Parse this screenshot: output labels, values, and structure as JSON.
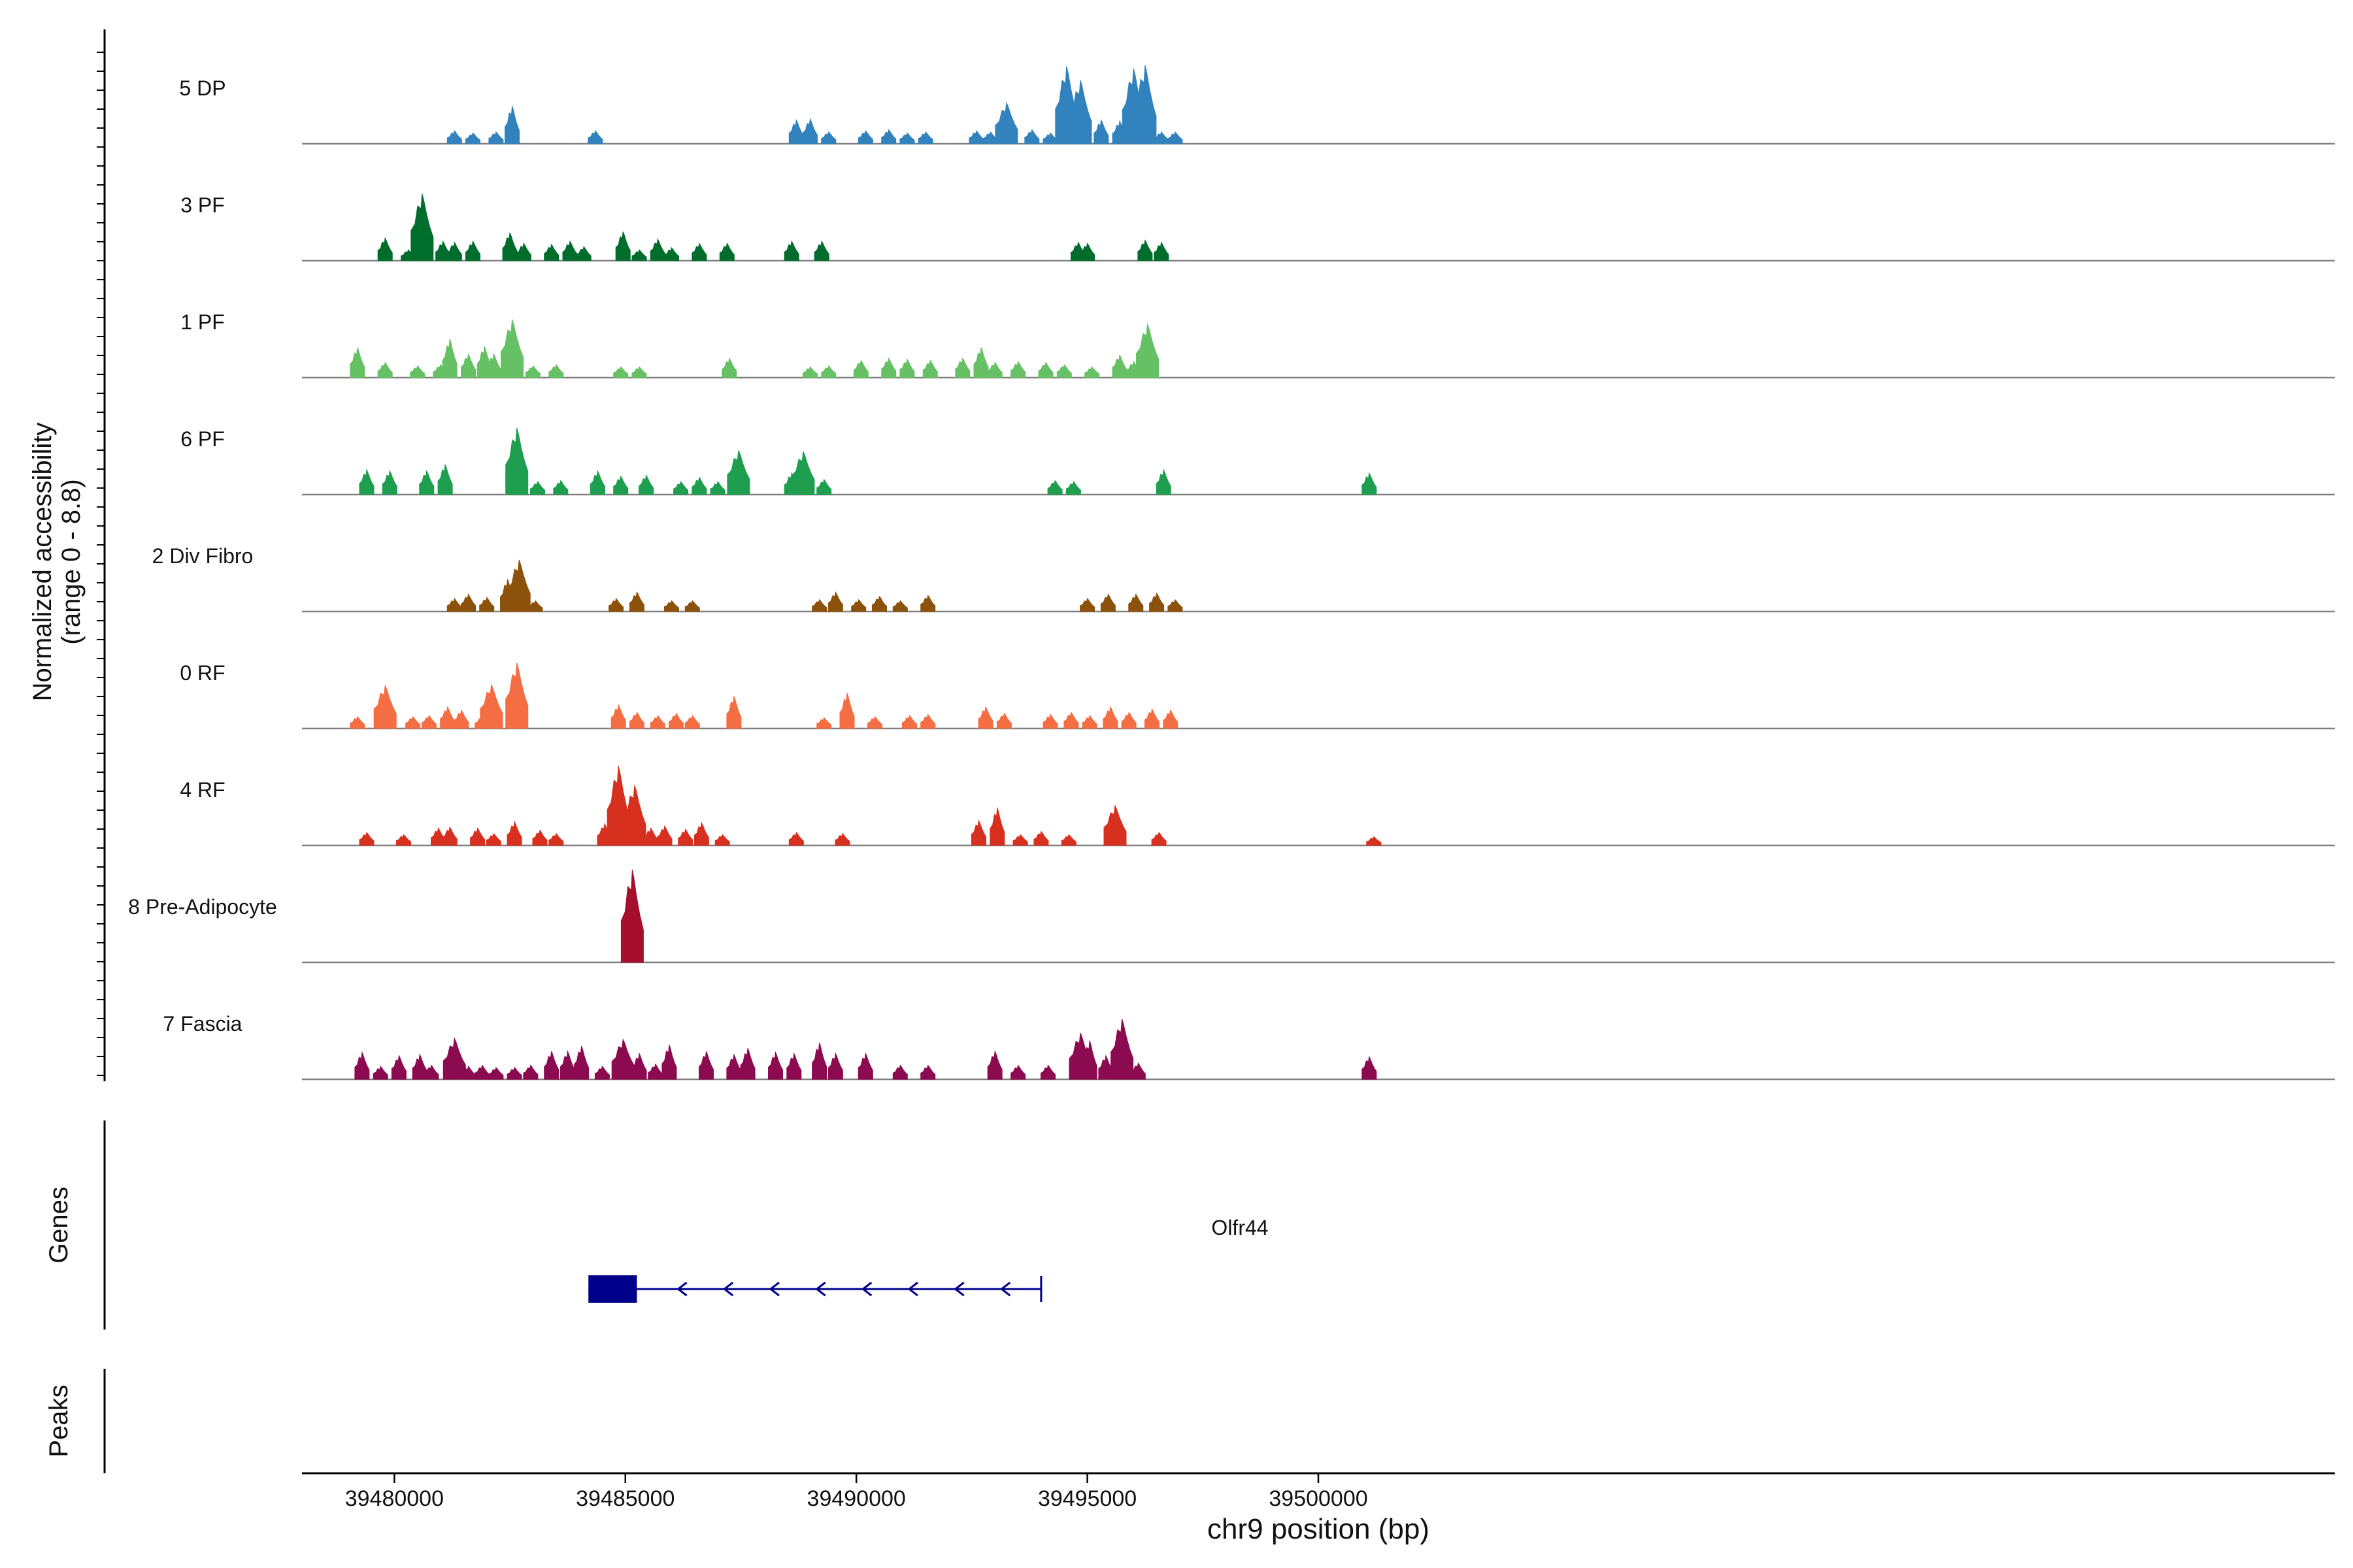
{
  "chart_data": {
    "type": "area",
    "title": "",
    "xlabel": "chr9 position (bp)",
    "ylabel_line1": "Normalized accessibility",
    "ylabel_line2": "(range 0 - 8.8)",
    "xlim": [
      39478000,
      39522000
    ],
    "ylim": [
      0,
      8.8
    ],
    "x_ticks": [
      39480000,
      39485000,
      39490000,
      39495000,
      39500000
    ],
    "x_tick_labels": [
      "39480000",
      "39485000",
      "39490000",
      "39495000",
      "39500000"
    ],
    "tracks": [
      {
        "name": "5 DP",
        "color": "#3182bd",
        "peaks": [
          [
            39481300,
            1.2
          ],
          [
            39481700,
            1.0
          ],
          [
            39482200,
            1.1
          ],
          [
            39482550,
            3.5
          ],
          [
            39484350,
            1.2
          ],
          [
            39488700,
            2.2
          ],
          [
            39489000,
            2.3
          ],
          [
            39489400,
            1.1
          ],
          [
            39490200,
            1.2
          ],
          [
            39490700,
            1.3
          ],
          [
            39491100,
            1.0
          ],
          [
            39491500,
            1.1
          ],
          [
            39492600,
            1.2
          ],
          [
            39492900,
            1.1
          ],
          [
            39493250,
            3.8
          ],
          [
            39493800,
            1.3
          ],
          [
            39494200,
            1.0
          ],
          [
            39494550,
            7.2
          ],
          [
            39494850,
            5.9
          ],
          [
            39495300,
            2.2
          ],
          [
            39495700,
            2.1
          ],
          [
            39496000,
            7.0
          ],
          [
            39496250,
            7.3
          ],
          [
            39496600,
            1.1
          ],
          [
            39496900,
            1.1
          ]
        ]
      },
      {
        "name": "3 PF",
        "color": "#006d2c",
        "peaks": [
          [
            39479800,
            2.1
          ],
          [
            39480300,
            1.0
          ],
          [
            39480600,
            6.2
          ],
          [
            39481050,
            1.8
          ],
          [
            39481300,
            1.7
          ],
          [
            39481700,
            1.8
          ],
          [
            39482500,
            2.6
          ],
          [
            39482800,
            1.6
          ],
          [
            39483400,
            1.5
          ],
          [
            39483800,
            1.8
          ],
          [
            39484100,
            1.3
          ],
          [
            39484950,
            2.7
          ],
          [
            39485300,
            1.0
          ],
          [
            39485700,
            2.0
          ],
          [
            39486000,
            1.2
          ],
          [
            39486600,
            1.6
          ],
          [
            39487200,
            1.6
          ],
          [
            39488600,
            1.8
          ],
          [
            39489250,
            1.8
          ],
          [
            39494800,
            1.7
          ],
          [
            39495000,
            1.6
          ],
          [
            39496250,
            1.9
          ],
          [
            39496600,
            1.7
          ]
        ]
      },
      {
        "name": "1 PF",
        "color": "#66c164",
        "peaks": [
          [
            39479200,
            2.8
          ],
          [
            39479800,
            1.4
          ],
          [
            39480500,
            1.1
          ],
          [
            39481000,
            1.2
          ],
          [
            39481200,
            3.6
          ],
          [
            39481600,
            2.2
          ],
          [
            39481950,
            2.9
          ],
          [
            39482150,
            2.2
          ],
          [
            39482550,
            5.4
          ],
          [
            39483000,
            1.1
          ],
          [
            39483500,
            1.2
          ],
          [
            39484900,
            1.0
          ],
          [
            39485300,
            1.0
          ],
          [
            39487250,
            1.8
          ],
          [
            39489000,
            1.0
          ],
          [
            39489400,
            1.1
          ],
          [
            39490100,
            1.6
          ],
          [
            39490700,
            1.8
          ],
          [
            39491100,
            1.7
          ],
          [
            39491600,
            1.6
          ],
          [
            39492300,
            1.8
          ],
          [
            39492700,
            2.8
          ],
          [
            39493000,
            1.4
          ],
          [
            39493500,
            1.5
          ],
          [
            39494100,
            1.4
          ],
          [
            39494500,
            1.2
          ],
          [
            39495100,
            1.0
          ],
          [
            39495700,
            2.1
          ],
          [
            39496000,
            1.5
          ],
          [
            39496300,
            5.0
          ]
        ]
      },
      {
        "name": "6 PF",
        "color": "#1f9e50",
        "peaks": [
          [
            39479400,
            2.3
          ],
          [
            39479900,
            2.2
          ],
          [
            39480700,
            2.2
          ],
          [
            39481100,
            2.8
          ],
          [
            39482650,
            6.2
          ],
          [
            39483100,
            1.2
          ],
          [
            39483600,
            1.3
          ],
          [
            39484400,
            2.2
          ],
          [
            39484900,
            1.7
          ],
          [
            39485450,
            1.8
          ],
          [
            39486200,
            1.2
          ],
          [
            39486600,
            1.6
          ],
          [
            39487000,
            1.2
          ],
          [
            39487450,
            4.1
          ],
          [
            39488600,
            2.0
          ],
          [
            39488850,
            4.0
          ],
          [
            39489300,
            1.4
          ],
          [
            39494300,
            1.3
          ],
          [
            39494700,
            1.2
          ],
          [
            39496650,
            2.3
          ],
          [
            39501100,
            2.0
          ]
        ]
      },
      {
        "name": "2 Div Fibro",
        "color": "#8c510a",
        "peaks": [
          [
            39481300,
            1.2
          ],
          [
            39481600,
            1.6
          ],
          [
            39482000,
            1.3
          ],
          [
            39482450,
            3.0
          ],
          [
            39482700,
            4.8
          ],
          [
            39483050,
            1.0
          ],
          [
            39484800,
            1.2
          ],
          [
            39485250,
            1.8
          ],
          [
            39486000,
            1.0
          ],
          [
            39486450,
            1.0
          ],
          [
            39489200,
            1.1
          ],
          [
            39489550,
            1.8
          ],
          [
            39490050,
            1.1
          ],
          [
            39490500,
            1.4
          ],
          [
            39490950,
            1.0
          ],
          [
            39491550,
            1.5
          ],
          [
            39495000,
            1.2
          ],
          [
            39495450,
            1.6
          ],
          [
            39496050,
            1.6
          ],
          [
            39496500,
            1.7
          ],
          [
            39496900,
            1.1
          ]
        ]
      },
      {
        "name": "0 RF",
        "color": "#f46d43",
        "peaks": [
          [
            39479200,
            1.1
          ],
          [
            39479800,
            4.0
          ],
          [
            39480400,
            1.1
          ],
          [
            39480750,
            1.2
          ],
          [
            39481150,
            2.0
          ],
          [
            39481450,
            1.7
          ],
          [
            39481900,
            1.1
          ],
          [
            39482100,
            4.1
          ],
          [
            39482650,
            6.1
          ],
          [
            39484850,
            2.2
          ],
          [
            39485250,
            1.5
          ],
          [
            39485700,
            1.2
          ],
          [
            39486100,
            1.4
          ],
          [
            39486450,
            1.2
          ],
          [
            39487350,
            3.0
          ],
          [
            39489300,
            1.0
          ],
          [
            39489800,
            3.3
          ],
          [
            39490400,
            1.1
          ],
          [
            39491150,
            1.2
          ],
          [
            39491550,
            1.3
          ],
          [
            39492800,
            2.0
          ],
          [
            39493200,
            1.4
          ],
          [
            39494200,
            1.3
          ],
          [
            39494650,
            1.5
          ],
          [
            39495050,
            1.2
          ],
          [
            39495500,
            2.0
          ],
          [
            39495900,
            1.5
          ],
          [
            39496400,
            1.8
          ],
          [
            39496800,
            1.7
          ]
        ]
      },
      {
        "name": "4 RF",
        "color": "#d7301f",
        "peaks": [
          [
            39479400,
            1.2
          ],
          [
            39480200,
            1.0
          ],
          [
            39480950,
            1.6
          ],
          [
            39481200,
            1.7
          ],
          [
            39481800,
            1.6
          ],
          [
            39482150,
            1.1
          ],
          [
            39482600,
            2.2
          ],
          [
            39483150,
            1.4
          ],
          [
            39483500,
            1.1
          ],
          [
            39484550,
            2.0
          ],
          [
            39484850,
            7.4
          ],
          [
            39485200,
            5.6
          ],
          [
            39485550,
            1.6
          ],
          [
            39485850,
            1.8
          ],
          [
            39486300,
            1.5
          ],
          [
            39486650,
            2.1
          ],
          [
            39487100,
            1.0
          ],
          [
            39488700,
            1.2
          ],
          [
            39489700,
            1.1
          ],
          [
            39492650,
            2.3
          ],
          [
            39493050,
            3.5
          ],
          [
            39493550,
            1.0
          ],
          [
            39494000,
            1.3
          ],
          [
            39494600,
            1.0
          ],
          [
            39495600,
            3.7
          ],
          [
            39496550,
            1.2
          ],
          [
            39501200,
            0.8
          ]
        ]
      },
      {
        "name": "8 Pre-Adipocyte",
        "color": "#a50f2d",
        "peaks": [
          [
            39485150,
            8.6
          ]
        ]
      },
      {
        "name": "7 Fascia",
        "color": "#8b0a50",
        "peaks": [
          [
            39479300,
            2.5
          ],
          [
            39479700,
            1.2
          ],
          [
            39480100,
            2.2
          ],
          [
            39480550,
            2.3
          ],
          [
            39480800,
            1.3
          ],
          [
            39481300,
            3.8
          ],
          [
            39481600,
            1.2
          ],
          [
            39481900,
            1.3
          ],
          [
            39482200,
            1.1
          ],
          [
            39482600,
            1.1
          ],
          [
            39482950,
            1.3
          ],
          [
            39483400,
            2.6
          ],
          [
            39483750,
            2.6
          ],
          [
            39484050,
            3.1
          ],
          [
            39484500,
            1.2
          ],
          [
            39484950,
            3.7
          ],
          [
            39485300,
            2.4
          ],
          [
            39485650,
            1.4
          ],
          [
            39485950,
            3.2
          ],
          [
            39486750,
            2.6
          ],
          [
            39487350,
            2.3
          ],
          [
            39487650,
            2.9
          ],
          [
            39488250,
            2.5
          ],
          [
            39488650,
            2.4
          ],
          [
            39489200,
            3.4
          ],
          [
            39489550,
            2.4
          ],
          [
            39490200,
            2.4
          ],
          [
            39490950,
            1.3
          ],
          [
            39491550,
            1.3
          ],
          [
            39493000,
            2.6
          ],
          [
            39493500,
            1.3
          ],
          [
            39494150,
            1.3
          ],
          [
            39494850,
            4.3
          ],
          [
            39495050,
            3.6
          ],
          [
            39495400,
            2.2
          ],
          [
            39495750,
            5.6
          ],
          [
            39496100,
            1.5
          ],
          [
            39501100,
            2.1
          ]
        ]
      }
    ],
    "genes": [
      {
        "name": "Olfr44",
        "exon_start": 39484200,
        "exon_end": 39485250,
        "tx_start": 39484200,
        "tx_end": 39494000,
        "strand": "-"
      }
    ],
    "gene_panel_label": "Genes",
    "peaks_panel_label": "Peaks",
    "peak_regions": []
  },
  "colors": {
    "axis": "#000000",
    "baseline": "#808080",
    "gene": "#00008b"
  }
}
